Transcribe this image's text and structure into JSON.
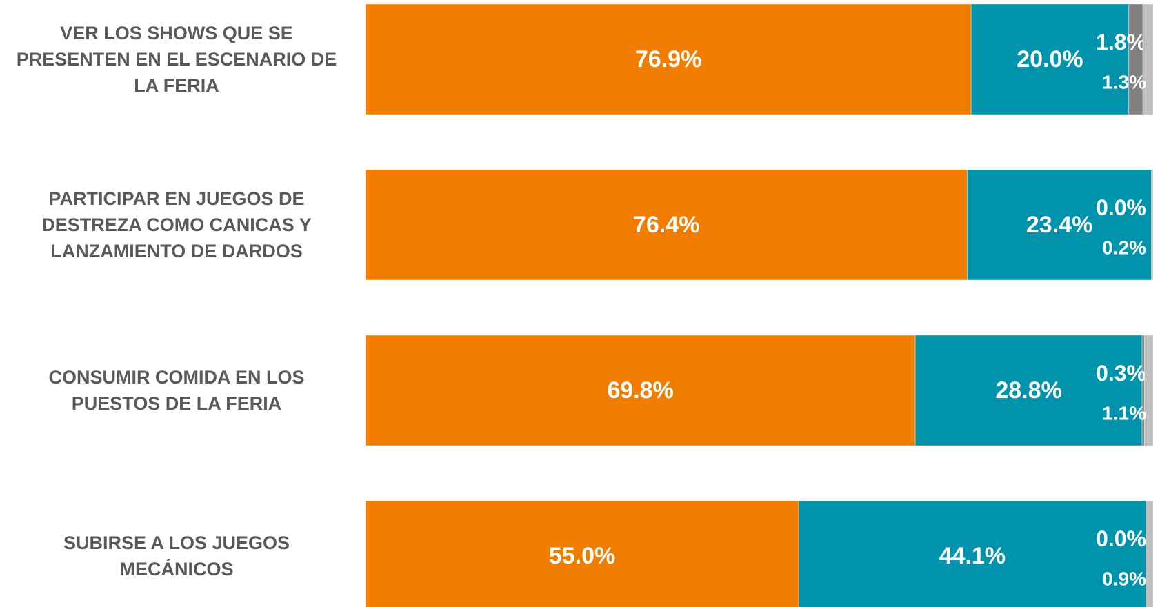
{
  "chart_data": {
    "type": "stacked-bar-horizontal",
    "categories": [
      "VER LOS SHOWS QUE SE PRESENTEN EN EL ESCENARIO DE LA FERIA",
      "PARTICIPAR EN JUEGOS DE DESTREZA COMO CANICAS Y LANZAMIENTO DE DARDOS",
      "CONSUMIR COMIDA EN LOS PUESTOS DE LA FERIA",
      "SUBIRSE A LOS JUEGOS MECÁNICOS"
    ],
    "series": [
      {
        "color": "#f07d00",
        "values": [
          76.9,
          76.4,
          69.8,
          55.0
        ],
        "value_labels": [
          "76.9%",
          "76.4%",
          "69.8%",
          "55.0%"
        ]
      },
      {
        "color": "#0093ab",
        "values": [
          20.0,
          23.4,
          28.8,
          44.1
        ],
        "value_labels": [
          "20.0%",
          "23.4%",
          "28.8%",
          "44.1%"
        ]
      },
      {
        "color": "#808080",
        "values": [
          1.8,
          0.0,
          0.3,
          0.0
        ],
        "value_labels": [
          "1.8%",
          "0.0%",
          "0.3%",
          "0.0%"
        ]
      },
      {
        "color": "#bfbfbf",
        "values": [
          1.3,
          0.2,
          1.1,
          0.9
        ],
        "value_labels": [
          "1.3%",
          "0.2%",
          "1.1%",
          "0.9%"
        ]
      }
    ],
    "xlim": [
      0,
      100
    ]
  }
}
